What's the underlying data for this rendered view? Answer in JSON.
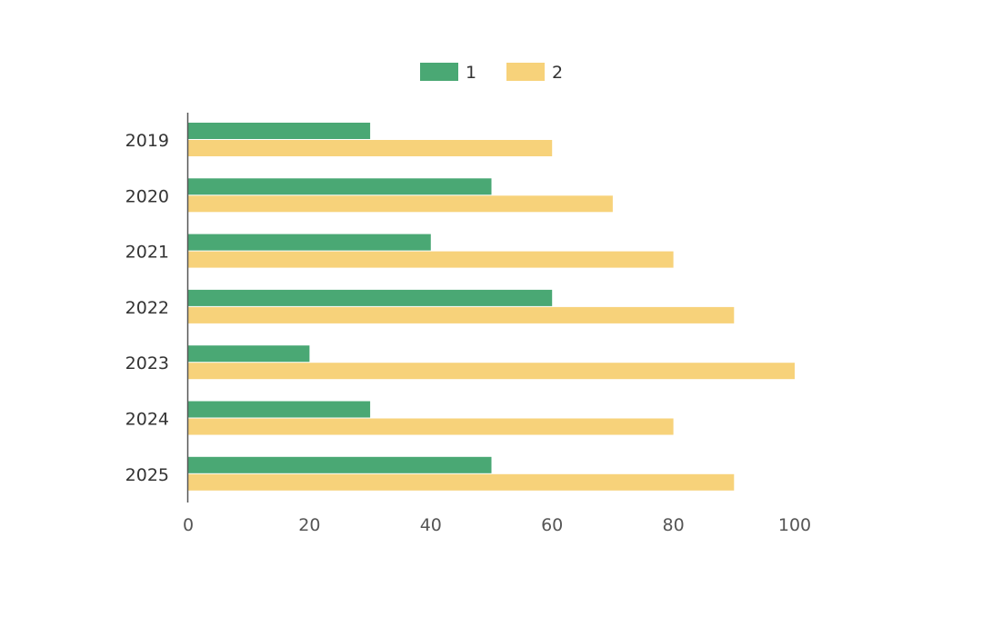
{
  "chart_data": {
    "type": "bar",
    "orientation": "horizontal",
    "categories": [
      "2019",
      "2020",
      "2021",
      "2022",
      "2023",
      "2024",
      "2025"
    ],
    "series": [
      {
        "name": "1",
        "values": [
          30,
          50,
          40,
          60,
          20,
          30,
          50
        ]
      },
      {
        "name": "2",
        "values": [
          60,
          70,
          80,
          90,
          100,
          80,
          90
        ]
      }
    ],
    "x_ticks": [
      0,
      20,
      40,
      60,
      80,
      100
    ],
    "xlim": [
      0,
      100
    ],
    "grid": false,
    "legend_position": "top-center",
    "colors": [
      "#4aa874",
      "#f7d27a"
    ],
    "axis_color": "#555555",
    "text_color": "#333333"
  }
}
